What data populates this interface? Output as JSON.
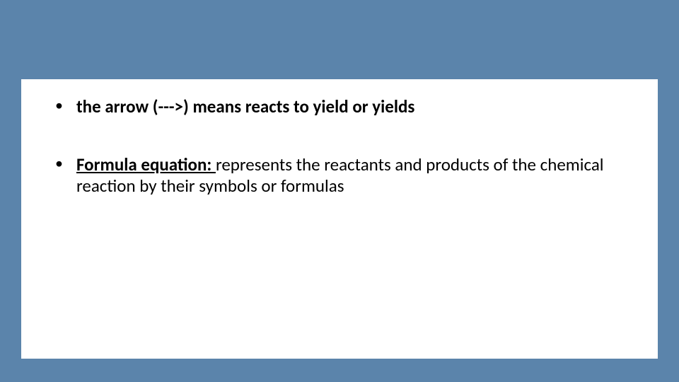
{
  "slide": {
    "background_color": "#5b84ab",
    "content_background": "#ffffff",
    "text_color": "#000000",
    "font_family": "Calibri",
    "bullets": [
      {
        "leading_space": " ",
        "bold_text": "the arrow (--->) means reacts to yield or yields",
        "term": "",
        "rest": ""
      },
      {
        "leading_space": "",
        "bold_text": "",
        "term": "Formula equation: ",
        "rest": "represents the reactants and products of the chemical reaction by their symbols or formulas"
      }
    ]
  }
}
